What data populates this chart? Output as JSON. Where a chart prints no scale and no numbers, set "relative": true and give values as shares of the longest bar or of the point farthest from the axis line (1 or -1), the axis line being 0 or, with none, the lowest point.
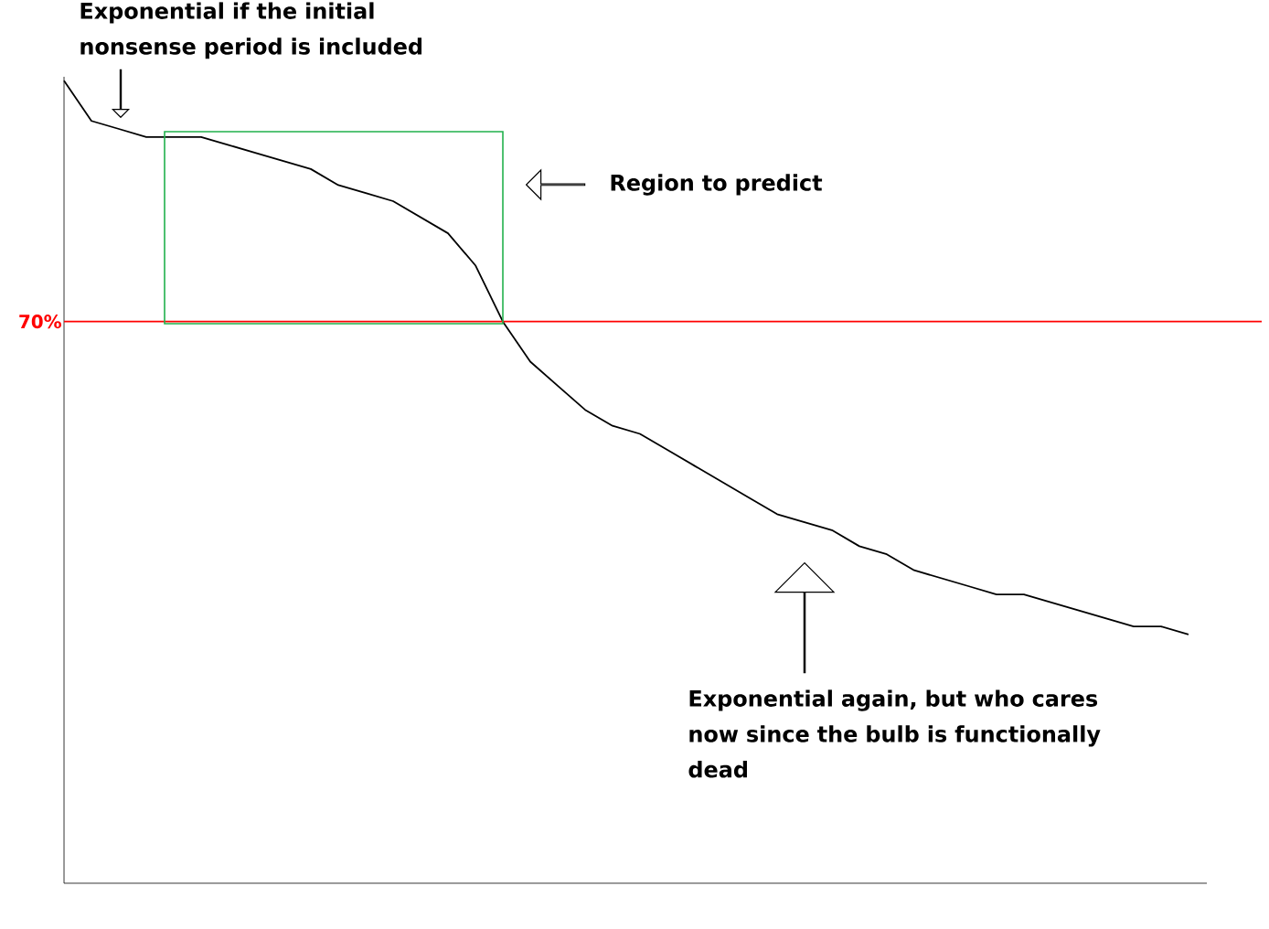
{
  "chart_data": {
    "type": "line",
    "relative": true,
    "categories": [
      null,
      null,
      null,
      null,
      null,
      null,
      null,
      null,
      null,
      null,
      null,
      null,
      null,
      null,
      null,
      null,
      null,
      null,
      null,
      null,
      null,
      null,
      null,
      null,
      null,
      null,
      null,
      null,
      null,
      null,
      null,
      null,
      null,
      null,
      null,
      null,
      null,
      null,
      null,
      null,
      null,
      null
    ],
    "series": [
      {
        "color": "#000000",
        "values": [
          1.0,
          0.95,
          0.94,
          0.93,
          0.93,
          0.93,
          0.92,
          0.91,
          0.9,
          0.89,
          0.87,
          0.86,
          0.85,
          0.83,
          0.81,
          0.77,
          0.7,
          0.65,
          0.62,
          0.59,
          0.57,
          0.56,
          0.54,
          0.52,
          0.5,
          0.48,
          0.46,
          0.45,
          0.44,
          0.42,
          0.41,
          0.39,
          0.38,
          0.37,
          0.36,
          0.36,
          0.35,
          0.34,
          0.33,
          0.32,
          0.32,
          0.31
        ]
      }
    ],
    "ref_lines": [
      {
        "axis": "y",
        "value": 0.7,
        "label": "70%",
        "color": "#ff0000"
      }
    ],
    "annotations": [
      "Exponential if the initial nonsense period is included",
      "Region to predict",
      "Exponential again, but who cares now since the bulb is functionally dead"
    ]
  }
}
